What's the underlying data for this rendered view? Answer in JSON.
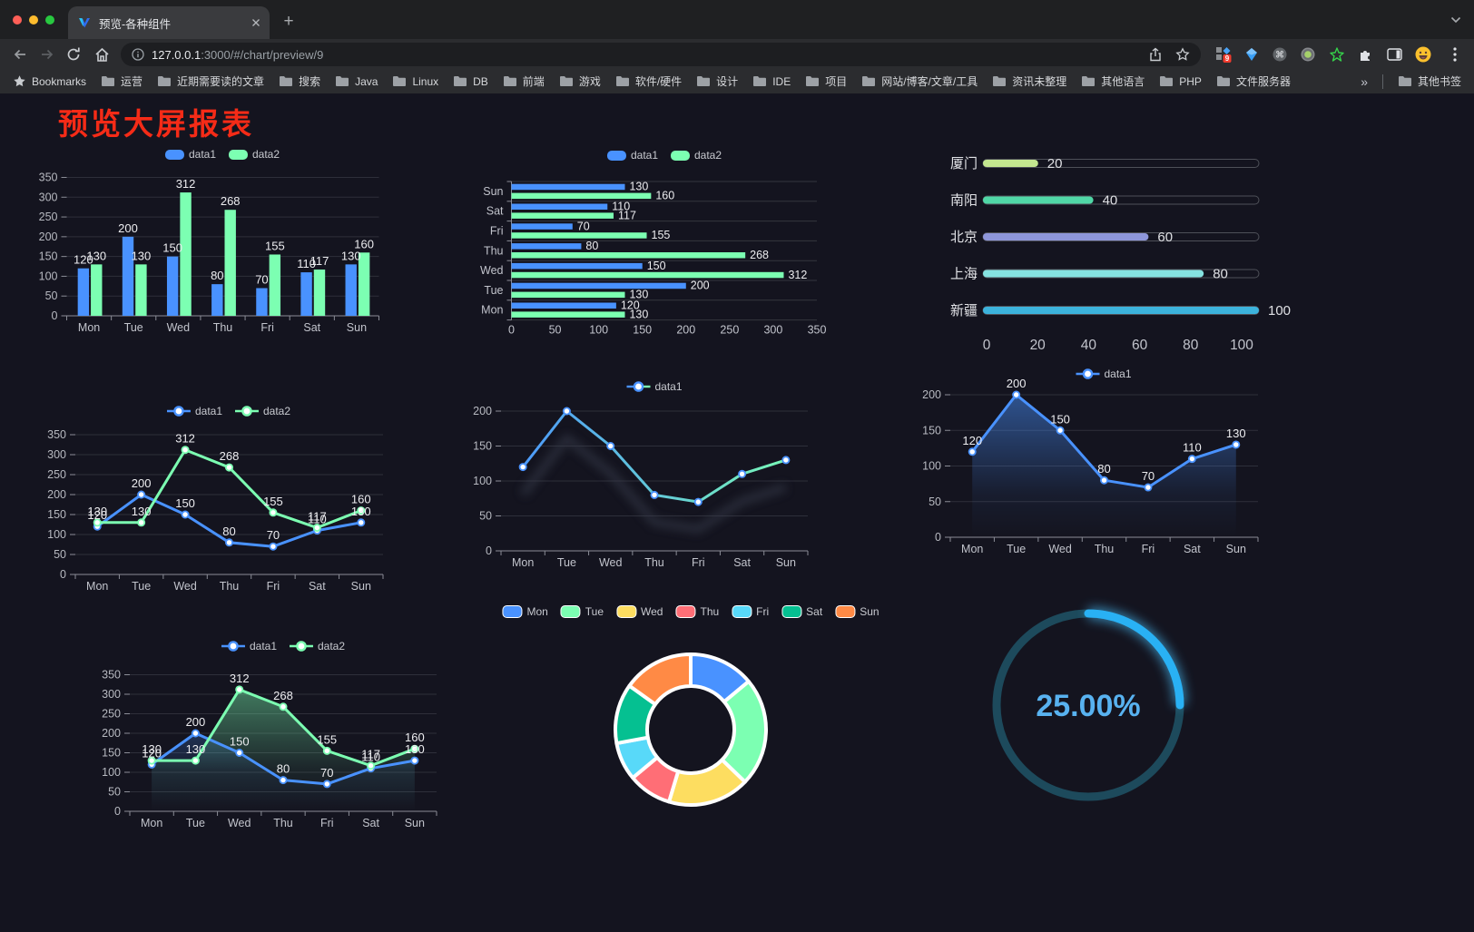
{
  "browser": {
    "tab_title": "预览-各种组件",
    "url": {
      "host": "127.0.0.1",
      "rest": ":3000/#/chart/preview/9"
    },
    "bookmarks_label": "Bookmarks",
    "bookmarks": [
      "运营",
      "近期需要读的文章",
      "搜索",
      "Java",
      "Linux",
      "DB",
      "前端",
      "游戏",
      "软件/硬件",
      "设计",
      "IDE",
      "项目",
      "网站/博客/文章/工具",
      "资讯未整理",
      "其他语言",
      "PHP",
      "文件服务器"
    ],
    "overflow_chevron": "»",
    "other_bookmarks": "其他书签"
  },
  "page": {
    "title": "预览大屏报表",
    "title_color": "#f52b17",
    "background": "#14141f"
  },
  "chart_data": [
    {
      "id": "bar-vertical",
      "type": "bar",
      "categories": [
        "Mon",
        "Tue",
        "Wed",
        "Thu",
        "Fri",
        "Sat",
        "Sun"
      ],
      "series": [
        {
          "name": "data1",
          "color": "#4992ff",
          "values": [
            120,
            200,
            150,
            80,
            70,
            110,
            130
          ]
        },
        {
          "name": "data2",
          "color": "#7cffb2",
          "values": [
            130,
            130,
            312,
            268,
            155,
            117,
            160
          ]
        }
      ],
      "ylim": [
        0,
        350
      ],
      "ytick": 50,
      "legend_pos": "top"
    },
    {
      "id": "bar-horizontal",
      "type": "bar-h",
      "categories": [
        "Mon",
        "Tue",
        "Wed",
        "Thu",
        "Fri",
        "Sat",
        "Sun"
      ],
      "series": [
        {
          "name": "data1",
          "color": "#4992ff",
          "values": [
            120,
            200,
            150,
            80,
            70,
            110,
            130
          ]
        },
        {
          "name": "data2",
          "color": "#7cffb2",
          "values": [
            130,
            130,
            312,
            268,
            155,
            117,
            160
          ]
        }
      ],
      "xlim": [
        0,
        350
      ],
      "xtick": 50
    },
    {
      "id": "progress-bars",
      "type": "progress",
      "items": [
        {
          "label": "厦门",
          "value": 20,
          "color": "#c4e78f"
        },
        {
          "label": "南阳",
          "value": 40,
          "color": "#50d7a6"
        },
        {
          "label": "北京",
          "value": 60,
          "color": "#8e96da"
        },
        {
          "label": "上海",
          "value": 80,
          "color": "#85e2e0"
        },
        {
          "label": "新疆",
          "value": 100,
          "color": "#3cb3dc"
        }
      ],
      "ticks": [
        0,
        20,
        40,
        60,
        80,
        100
      ]
    },
    {
      "id": "line-two-series",
      "type": "line",
      "categories": [
        "Mon",
        "Tue",
        "Wed",
        "Thu",
        "Fri",
        "Sat",
        "Sun"
      ],
      "series": [
        {
          "name": "data1",
          "color": "#4992ff",
          "values": [
            120,
            200,
            150,
            80,
            70,
            110,
            130
          ]
        },
        {
          "name": "data2",
          "color": "#7cffb2",
          "values": [
            130,
            130,
            312,
            268,
            155,
            117,
            160
          ]
        }
      ],
      "ylim": [
        0,
        350
      ],
      "ytick": 50,
      "show_labels": true
    },
    {
      "id": "line-gradient",
      "type": "line",
      "categories": [
        "Mon",
        "Tue",
        "Wed",
        "Thu",
        "Fri",
        "Sat",
        "Sun"
      ],
      "series": [
        {
          "name": "data1",
          "color": "#4992ff",
          "gradient": [
            "#4992ff",
            "#7cffb2"
          ],
          "values": [
            120,
            200,
            150,
            80,
            70,
            110,
            130
          ]
        }
      ],
      "ylim": [
        0,
        200
      ],
      "ytick": 50,
      "shadow": true,
      "show_labels": false
    },
    {
      "id": "area-one-series",
      "type": "line",
      "categories": [
        "Mon",
        "Tue",
        "Wed",
        "Thu",
        "Fri",
        "Sat",
        "Sun"
      ],
      "series": [
        {
          "name": "data1",
          "color": "#4992ff",
          "area": true,
          "values": [
            120,
            200,
            150,
            80,
            70,
            110,
            130
          ]
        }
      ],
      "ylim": [
        0,
        200
      ],
      "ytick": 50,
      "show_labels": true
    },
    {
      "id": "area-two-series",
      "type": "line",
      "categories": [
        "Mon",
        "Tue",
        "Wed",
        "Thu",
        "Fri",
        "Sat",
        "Sun"
      ],
      "series": [
        {
          "name": "data1",
          "color": "#4992ff",
          "area": true,
          "values": [
            120,
            200,
            150,
            80,
            70,
            110,
            130
          ]
        },
        {
          "name": "data2",
          "color": "#7cffb2",
          "area": true,
          "values": [
            130,
            130,
            312,
            268,
            155,
            117,
            160
          ]
        }
      ],
      "ylim": [
        0,
        350
      ],
      "ytick": 50,
      "show_labels": true
    },
    {
      "id": "donut",
      "type": "pie",
      "items": [
        {
          "label": "Mon",
          "value": 120,
          "color": "#4992ff"
        },
        {
          "label": "Tue",
          "value": 200,
          "color": "#7cffb2"
        },
        {
          "label": "Wed",
          "value": 150,
          "color": "#fddd60"
        },
        {
          "label": "Thu",
          "value": 80,
          "color": "#ff6e76"
        },
        {
          "label": "Fri",
          "value": 70,
          "color": "#58d9f9"
        },
        {
          "label": "Sat",
          "value": 110,
          "color": "#05c091"
        },
        {
          "label": "Sun",
          "value": 130,
          "color": "#ff8a45"
        }
      ]
    },
    {
      "id": "gauge",
      "type": "gauge",
      "percent": 25,
      "label": "25.00%",
      "color": "#29b1f4",
      "track": "#1d4a5c"
    }
  ]
}
